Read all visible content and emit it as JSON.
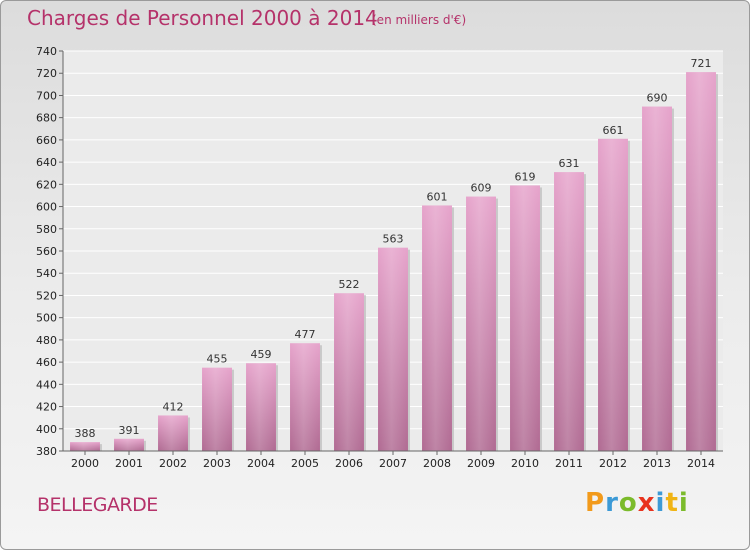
{
  "title": "Charges de Personnel 2000 à 2014",
  "subtitle": "(en milliers d'€)",
  "place": "BELLEGARDE",
  "logo": {
    "p": "P",
    "r": "r",
    "o": "o",
    "x": "x",
    "i1": "i",
    "t": "t",
    "i2": "i"
  },
  "colors": {
    "bar": "#d66fa6",
    "title": "#b5326a"
  },
  "chart_data": {
    "type": "bar",
    "title": "Charges de Personnel 2000 à 2014",
    "subtitle": "(en milliers d'€)",
    "categories": [
      "2000",
      "2001",
      "2002",
      "2003",
      "2004",
      "2005",
      "2006",
      "2007",
      "2008",
      "2009",
      "2010",
      "2011",
      "2012",
      "2013",
      "2014"
    ],
    "values": [
      388,
      391,
      412,
      455,
      459,
      477,
      522,
      563,
      601,
      609,
      619,
      631,
      661,
      690,
      721
    ],
    "ylim": [
      380,
      740
    ],
    "yticks": [
      380,
      400,
      420,
      440,
      460,
      480,
      500,
      520,
      540,
      560,
      580,
      600,
      620,
      640,
      660,
      680,
      700,
      720,
      740
    ],
    "grid": true,
    "data_labels": true
  }
}
